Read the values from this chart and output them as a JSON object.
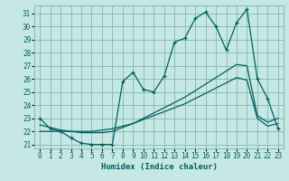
{
  "xlabel": "Humidex (Indice chaleur)",
  "bg_color": "#c5e8e5",
  "grid_color": "#8cbcba",
  "line_color": "#006060",
  "xlim": [
    -0.5,
    23.5
  ],
  "ylim": [
    20.7,
    31.6
  ],
  "yticks": [
    21,
    22,
    23,
    24,
    25,
    26,
    27,
    28,
    29,
    30,
    31
  ],
  "xticks": [
    0,
    1,
    2,
    3,
    4,
    5,
    6,
    7,
    8,
    9,
    10,
    11,
    12,
    13,
    14,
    15,
    16,
    17,
    18,
    19,
    20,
    21,
    22,
    23
  ],
  "line1_x": [
    0,
    1,
    2,
    3,
    4,
    5,
    6,
    7,
    8,
    9,
    10,
    11,
    12,
    13,
    14,
    15,
    16,
    17,
    18,
    19,
    20,
    21,
    22,
    23
  ],
  "line1_y": [
    23.0,
    22.2,
    22.0,
    21.5,
    21.1,
    21.0,
    21.0,
    21.0,
    25.8,
    26.5,
    25.2,
    25.0,
    26.2,
    28.8,
    29.1,
    30.6,
    31.1,
    30.0,
    28.2,
    30.3,
    31.3,
    26.0,
    24.5,
    22.2
  ],
  "line2_x": [
    0,
    1,
    2,
    3,
    4,
    5,
    6,
    7,
    8,
    9,
    10,
    11,
    12,
    13,
    14,
    15,
    16,
    17,
    18,
    19,
    20,
    21,
    22,
    23
  ],
  "line2_y": [
    22.0,
    22.0,
    22.0,
    22.0,
    22.0,
    22.0,
    22.1,
    22.2,
    22.4,
    22.6,
    22.9,
    23.2,
    23.5,
    23.8,
    24.1,
    24.5,
    24.9,
    25.3,
    25.7,
    26.1,
    25.9,
    23.0,
    22.4,
    22.6
  ],
  "line3_x": [
    0,
    1,
    2,
    3,
    4,
    5,
    6,
    7,
    8,
    9,
    10,
    11,
    12,
    13,
    14,
    15,
    16,
    17,
    18,
    19,
    20,
    21,
    22,
    23
  ],
  "line3_y": [
    22.5,
    22.3,
    22.1,
    22.0,
    21.9,
    21.9,
    21.9,
    22.0,
    22.3,
    22.6,
    23.0,
    23.4,
    23.8,
    24.2,
    24.6,
    25.1,
    25.6,
    26.1,
    26.6,
    27.1,
    27.0,
    23.2,
    22.7,
    23.0
  ]
}
